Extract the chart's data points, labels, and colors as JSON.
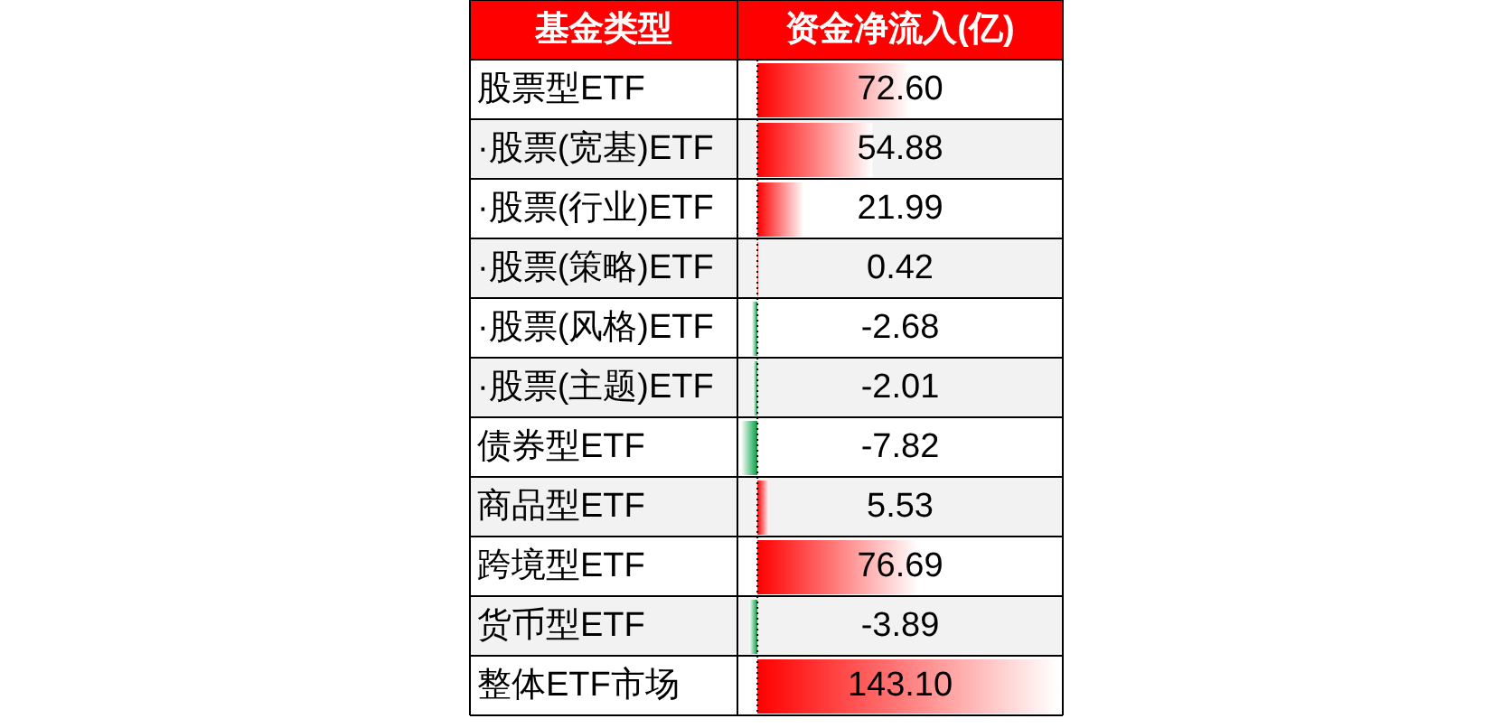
{
  "chart_data": {
    "type": "bar",
    "orientation": "horizontal",
    "ylabel": "基金类型",
    "xlabel": "资金净流入(亿)",
    "categories": [
      "股票型ETF",
      "·股票(宽基)ETF",
      "·股票(行业)ETF",
      "·股票(策略)ETF",
      "·股票(风格)ETF",
      "·股票(主题)ETF",
      "债券型ETF",
      "商品型ETF",
      "跨境型ETF",
      "货币型ETF",
      "整体ETF市场"
    ],
    "values": [
      72.6,
      54.88,
      21.99,
      0.42,
      -2.68,
      -2.01,
      -7.82,
      5.53,
      76.69,
      -3.89,
      143.1
    ],
    "value_labels": [
      "72.60",
      "54.88",
      "21.99",
      "0.42",
      "-2.68",
      "-2.01",
      "-7.82",
      "5.53",
      "76.69",
      "-3.89",
      "143.10"
    ],
    "ref_lines": [
      {
        "axis": "x",
        "value": 0,
        "color": "#000000",
        "line_style": "dotted"
      }
    ],
    "colors": [
      "#ff0000",
      "#ff0000",
      "#ff0000",
      "#ff0000",
      "#00a040",
      "#00a040",
      "#00a040",
      "#ff0000",
      "#ff0000",
      "#00a040",
      "#ff0000"
    ]
  }
}
